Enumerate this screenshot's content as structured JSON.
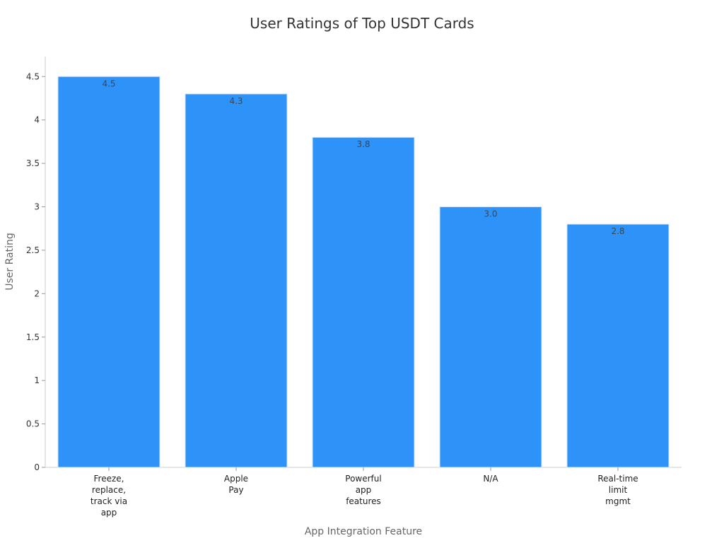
{
  "chart_data": {
    "type": "bar",
    "title": "User Ratings of Top USDT Cards",
    "xlabel": "App Integration Feature",
    "ylabel": "User Rating",
    "categories": [
      [
        "Freeze,",
        "replace,",
        "track via",
        "app"
      ],
      [
        "Apple",
        "Pay"
      ],
      [
        "Powerful",
        "app",
        "features"
      ],
      [
        "N/A"
      ],
      [
        "Real-time",
        "limit",
        "mgmt"
      ]
    ],
    "values": [
      4.5,
      4.3,
      3.8,
      3.0,
      2.8
    ],
    "value_labels": [
      "4.5",
      "4.3",
      "3.8",
      "3.0",
      "2.8"
    ],
    "yticks": [
      0,
      0.5,
      1,
      1.5,
      2,
      2.5,
      3,
      3.5,
      4,
      4.5
    ],
    "ytick_labels": [
      "0",
      "0.5",
      "1",
      "1.5",
      "2",
      "2.5",
      "3",
      "3.5",
      "4",
      "4.5"
    ],
    "ylim": [
      0,
      4.73
    ],
    "grid": false,
    "legend": "none",
    "bar_color": "#2e93f8",
    "bar_edge_color": "#cfe3fa"
  }
}
